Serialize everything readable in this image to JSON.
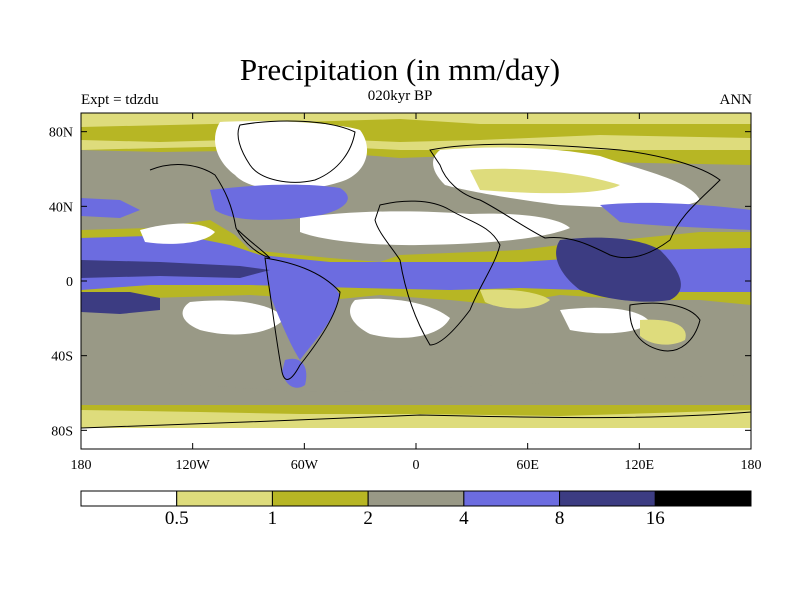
{
  "map": {
    "title": "Precipitation (in mm/day)",
    "left_label": "Expt = tdzdu",
    "center_label": "020kyr BP",
    "right_label": "ANN",
    "lat_ticks": [
      {
        "value": 80,
        "label": "80N"
      },
      {
        "value": 40,
        "label": "40N"
      },
      {
        "value": 0,
        "label": "0"
      },
      {
        "value": -40,
        "label": "40S"
      },
      {
        "value": -80,
        "label": "80S"
      }
    ],
    "lon_ticks": [
      {
        "value": -180,
        "label": "180"
      },
      {
        "value": -120,
        "label": "120W"
      },
      {
        "value": -60,
        "label": "60W"
      },
      {
        "value": 0,
        "label": "0"
      },
      {
        "value": 60,
        "label": "60E"
      },
      {
        "value": 120,
        "label": "120E"
      },
      {
        "value": 180,
        "label": "180"
      }
    ]
  },
  "colorbar": {
    "bins": [
      {
        "name": "lt-0.5",
        "color": "#ffffff"
      },
      {
        "name": "0.5-1",
        "color": "#dedc7c"
      },
      {
        "name": "1-2",
        "color": "#b7b624"
      },
      {
        "name": "2-4",
        "color": "#999986"
      },
      {
        "name": "4-8",
        "color": "#6c6ce0"
      },
      {
        "name": "8-16",
        "color": "#3c3c82"
      },
      {
        "name": "gt-16",
        "color": "#000000"
      }
    ],
    "labels": [
      "0.5",
      "1",
      "2",
      "4",
      "8",
      "16"
    ]
  }
}
